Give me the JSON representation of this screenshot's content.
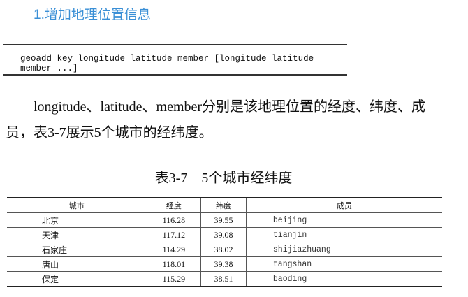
{
  "heading": "1.增加地理位置信息",
  "code": "geoadd key longitude latitude member [longitude latitude member ...]",
  "paragraph": "longitude、latitude、member分别是该地理位置的经度、纬度、成员，表3-7展示5个城市的经纬度。",
  "caption": "表3-7　5个城市经纬度",
  "table": {
    "headers": [
      "城市",
      "经度",
      "纬度",
      "成员"
    ],
    "rows": [
      [
        "北京",
        "116.28",
        "39.55",
        "beijing"
      ],
      [
        "天津",
        "117.12",
        "39.08",
        "tianjin"
      ],
      [
        "石家庄",
        "114.29",
        "38.02",
        "shijiazhuang"
      ],
      [
        "唐山",
        "118.01",
        "39.38",
        "tangshan"
      ],
      [
        "保定",
        "115.29",
        "38.51",
        "baoding"
      ]
    ]
  },
  "colors": {
    "heading": "#3a8fd6"
  }
}
